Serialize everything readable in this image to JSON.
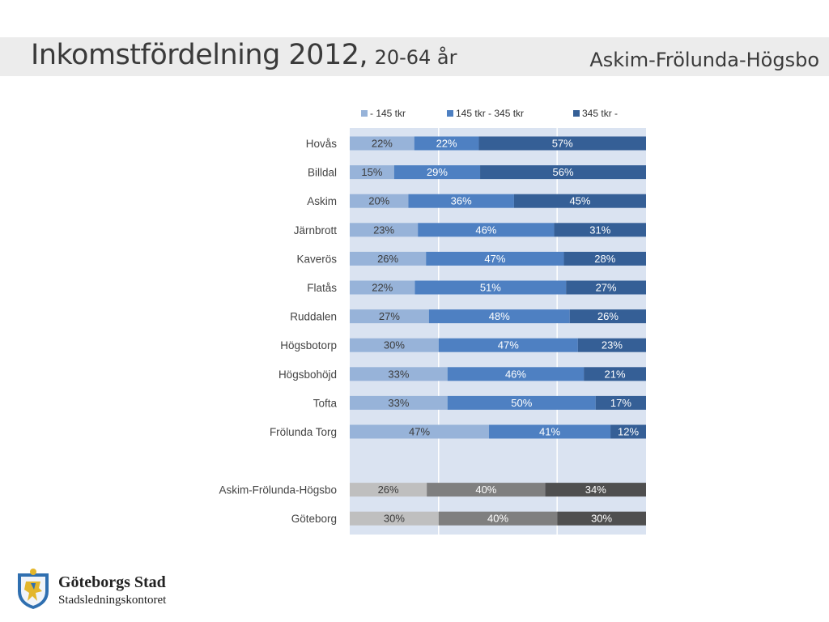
{
  "header": {
    "title": "Inkomstfördelning 2012,",
    "subtitle": "20-64 år",
    "district": "Askim-Frölunda-Högsbo"
  },
  "logo": {
    "name": "Göteborgs Stad",
    "department": "Stadsledningskontoret"
  },
  "colors": {
    "plot_background": "#dae3f1",
    "series_light_blue": "#97b3d9",
    "series_mid_blue": "#4e80c2",
    "series_dark_blue": "#355f96",
    "total_light_gray": "#bfbfbf",
    "total_mid_gray": "#7f7f7f",
    "total_dark_gray": "#4f4f4f"
  },
  "chart_data": {
    "type": "bar",
    "orientation": "horizontal",
    "stacked": "percent",
    "legend_position": "top",
    "categories": [
      "Hovås",
      "Billdal",
      "Askim",
      "Järnbrott",
      "Kaverös",
      "Flatås",
      "Ruddalen",
      "Högsbotorp",
      "Högsbohöjd",
      "Tofta",
      "Frölunda Torg",
      "Askim-Frölunda-Högsbo",
      "Göteborg"
    ],
    "series": [
      {
        "name": "- 145 tkr",
        "values": [
          22,
          15,
          20,
          23,
          26,
          22,
          27,
          30,
          33,
          33,
          47,
          26,
          30
        ]
      },
      {
        "name": "145 tkr - 345 tkr",
        "values": [
          22,
          29,
          36,
          46,
          47,
          51,
          48,
          47,
          46,
          50,
          41,
          40,
          40
        ]
      },
      {
        "name": "345 tkr -",
        "values": [
          57,
          56,
          45,
          31,
          28,
          27,
          26,
          23,
          21,
          17,
          12,
          34,
          30
        ]
      }
    ],
    "data_labels": [
      [
        "22%",
        "22%",
        "57%"
      ],
      [
        "15%",
        "29%",
        "56%"
      ],
      [
        "20%",
        "36%",
        "45%"
      ],
      [
        "23%",
        "46%",
        "31%"
      ],
      [
        "26%",
        "47%",
        "28%"
      ],
      [
        "22%",
        "51%",
        "27%"
      ],
      [
        "27%",
        "48%",
        "26%"
      ],
      [
        "30%",
        "47%",
        "23%"
      ],
      [
        "33%",
        "46%",
        "21%"
      ],
      [
        "33%",
        "50%",
        "17%"
      ],
      [
        "47%",
        "41%",
        "12%"
      ],
      [
        "26%",
        "40%",
        "34%"
      ],
      [
        "30%",
        "40%",
        "30%"
      ]
    ],
    "summary_rows": [
      "Askim-Frölunda-Högsbo",
      "Göteborg"
    ],
    "xlim": [
      0,
      1
    ],
    "grid": true
  }
}
